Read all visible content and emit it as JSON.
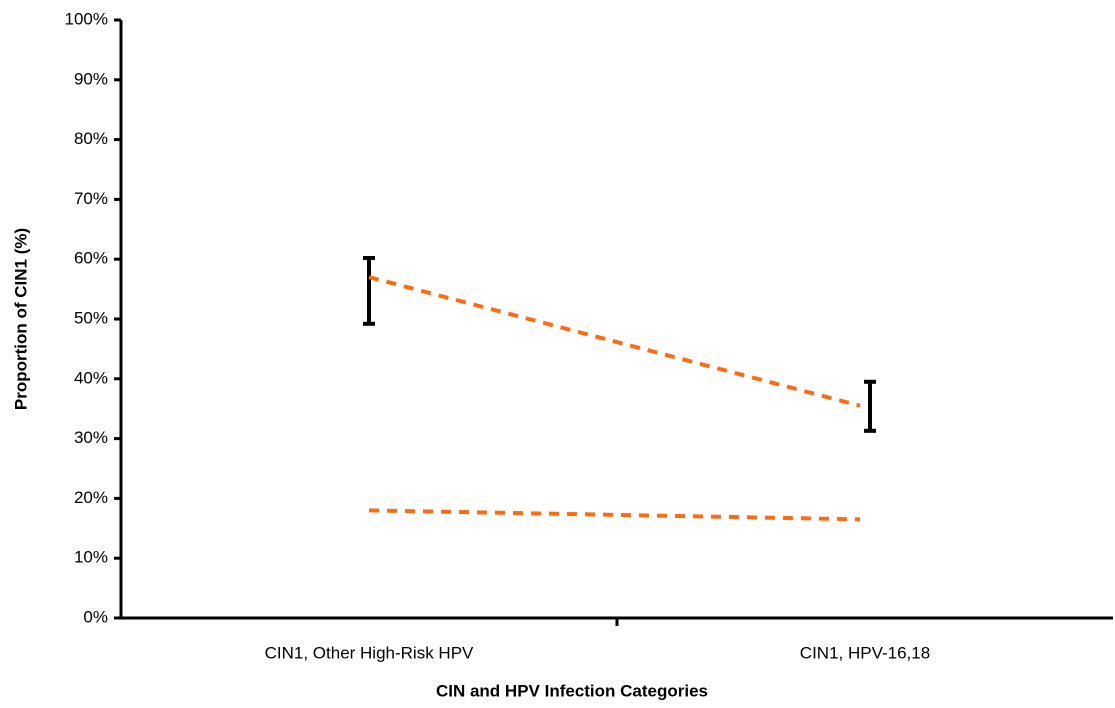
{
  "chart_data": {
    "type": "line",
    "x_label": "CIN and HPV Infection Categories",
    "y_label": "Proportion of CIN1 (%)",
    "categories": [
      "CIN1, Other High-Risk HPV",
      "CIN1, HPV-16,18"
    ],
    "series": [
      {
        "color": "#ff6a13",
        "dash": true,
        "values": [
          57,
          35.5
        ],
        "error_lower": [
          49.2,
          31.3
        ],
        "error_upper": [
          60.2,
          39.5
        ]
      },
      {
        "color": "#ff6a13",
        "dash": true,
        "values": [
          18,
          16.5
        ]
      }
    ],
    "ylim": [
      0,
      100
    ],
    "yticks": [
      {
        "value": 0,
        "label": "0%"
      },
      {
        "value": 10,
        "label": "10%"
      },
      {
        "value": 20,
        "label": "20%"
      },
      {
        "value": 30,
        "label": "30%"
      },
      {
        "value": 40,
        "label": "40%"
      },
      {
        "value": 50,
        "label": "50%"
      },
      {
        "value": 60,
        "label": "60%"
      },
      {
        "value": 70,
        "label": "70%"
      },
      {
        "value": 80,
        "label": "80%"
      },
      {
        "value": 90,
        "label": "90%"
      },
      {
        "value": 100,
        "label": "100%"
      }
    ],
    "grid": false
  }
}
